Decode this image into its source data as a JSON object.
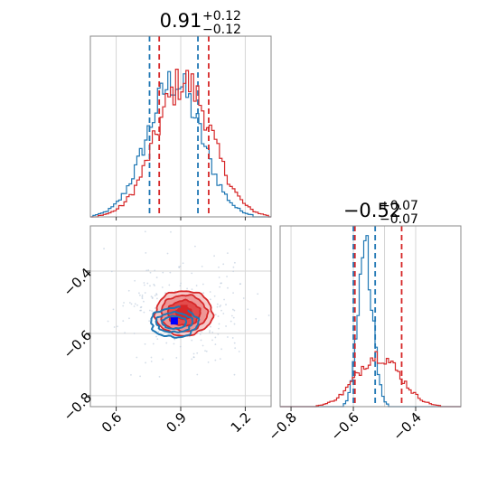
{
  "chart_data": [
    {
      "type": "histogram",
      "panel": "top-left",
      "title": {
        "main": "0.91",
        "sup": "+0.12",
        "sub": "−0.12"
      },
      "xlim": [
        0.48,
        1.32
      ],
      "xticks": [
        0.6,
        0.9,
        1.2
      ],
      "grid": true,
      "series": [
        {
          "color": "#1f77b4",
          "mean": 0.87,
          "sd": 0.125,
          "quantile_lines": [
            0.755,
            0.98
          ]
        },
        {
          "color": "#d62728",
          "mean": 0.915,
          "sd": 0.13,
          "quantile_lines": [
            0.8,
            1.03
          ]
        }
      ]
    },
    {
      "type": "contour",
      "panel": "bottom-left",
      "xlim": [
        0.48,
        1.32
      ],
      "ylim": [
        -0.835,
        -0.255
      ],
      "xticks": [
        0.6,
        0.9,
        1.2
      ],
      "yticks": [
        -0.4,
        -0.6,
        -0.8
      ],
      "xtick_labels": [
        "0.6",
        "0.9",
        "1.2"
      ],
      "ytick_labels": [
        "−0.4",
        "−0.6",
        "−0.8"
      ],
      "grid": true,
      "series": [
        {
          "color": "#d62728",
          "center": [
            0.915,
            -0.535
          ],
          "spread": [
            0.13,
            0.07
          ],
          "marker": [
            0.915,
            -0.52
          ]
        },
        {
          "color": "#1f77b4",
          "center": [
            0.87,
            -0.565
          ],
          "spread": [
            0.125,
            0.022
          ],
          "marker": [
            0.87,
            -0.56
          ]
        }
      ]
    },
    {
      "type": "histogram",
      "panel": "bottom-right",
      "title": {
        "main": "−0.52",
        "sup": "+0.07",
        "sub": "−0.07"
      },
      "xlim": [
        -0.835,
        -0.255
      ],
      "xticks": [
        -0.8,
        -0.6,
        -0.4
      ],
      "xtick_labels": [
        "−0.8",
        "−0.6",
        "−0.4"
      ],
      "grid": true,
      "series": [
        {
          "color": "#1f77b4",
          "mean": -0.56,
          "sd": 0.024,
          "quantile_lines": [
            -0.6,
            -0.53
          ]
        },
        {
          "color": "#d62728",
          "mean": -0.52,
          "sd": 0.07,
          "quantile_lines": [
            -0.595,
            -0.445
          ]
        }
      ]
    }
  ]
}
